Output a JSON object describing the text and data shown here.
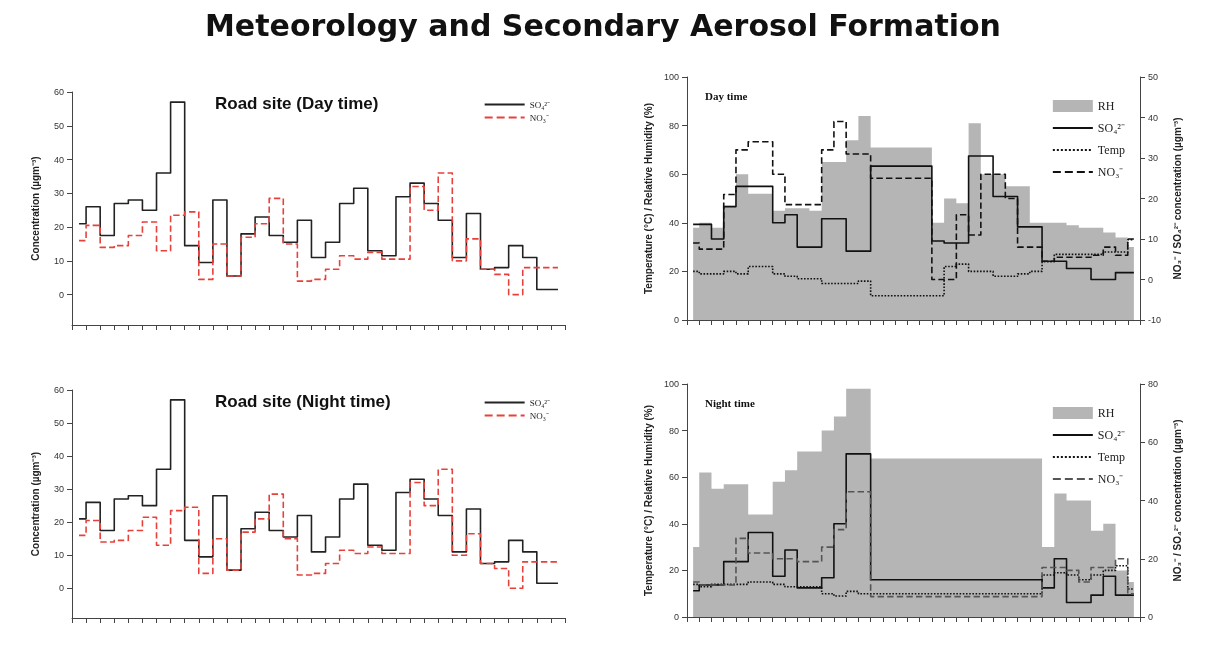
{
  "chart_data": [
    {
      "type": "step",
      "title": "Meteorology and Secondary Aerosol Formation",
      "subtitle": "Road site (Day time)",
      "ylabel": "Concentration (µgm⁻³)",
      "categories": [
        null,
        null,
        null,
        null,
        null,
        null,
        null,
        null,
        null,
        null,
        null,
        null,
        null,
        null,
        null,
        null,
        null,
        null,
        null,
        null,
        null,
        null,
        null,
        null,
        null,
        null,
        null,
        null,
        null,
        null,
        null,
        null,
        null,
        null,
        null
      ],
      "series": [
        {
          "name": "SO₄²⁻",
          "color": "#222222",
          "line_style": "solid",
          "values": [
            21,
            26,
            17.5,
            27,
            28,
            25,
            36,
            57,
            14.5,
            9.5,
            28,
            5.5,
            18,
            23,
            17.5,
            15.5,
            22,
            11,
            15.5,
            27,
            31.5,
            13,
            11.5,
            29,
            33,
            27,
            22,
            11,
            24,
            7.5,
            8,
            14.5,
            11,
            1.5,
            1.5
          ]
        },
        {
          "name": "NO₃⁻",
          "color": "#e8403a",
          "line_style": "dashed",
          "values": [
            16,
            20.5,
            14,
            14.5,
            17.5,
            21.5,
            13,
            23.5,
            24.5,
            4.5,
            15,
            5.5,
            17,
            21,
            28.5,
            15,
            4,
            4.5,
            7.5,
            11.5,
            10.5,
            12.5,
            10.5,
            10.5,
            32,
            25,
            36,
            10,
            16.5,
            7.5,
            6,
            0,
            8,
            8,
            8
          ]
        }
      ],
      "ylim": [
        -9,
        60
      ],
      "yticks": [
        0,
        10,
        20,
        30,
        40,
        50,
        60
      ],
      "grid": false,
      "legend": "top right",
      "marker": "none",
      "tick_labels": "y"
    },
    {
      "type": "step",
      "subtitle": "Road site (Night time)",
      "ylabel": "Concentration (µgm⁻³)",
      "categories": [
        null,
        null,
        null,
        null,
        null,
        null,
        null,
        null,
        null,
        null,
        null,
        null,
        null,
        null,
        null,
        null,
        null,
        null,
        null,
        null,
        null,
        null,
        null,
        null,
        null,
        null,
        null,
        null,
        null,
        null,
        null,
        null,
        null,
        null,
        null
      ],
      "series": [
        {
          "name": "SO₄²⁻",
          "color": "#222222",
          "line_style": "solid",
          "values": [
            21,
            26,
            17.5,
            27,
            28,
            25,
            36,
            57,
            14.5,
            9.5,
            28,
            5.5,
            18,
            23,
            17.5,
            15.5,
            22,
            11,
            15.5,
            27,
            31.5,
            13,
            11.5,
            29,
            33,
            27,
            22,
            11,
            24,
            7.5,
            8,
            14.5,
            11,
            1.5,
            1.5
          ]
        },
        {
          "name": "NO₃⁻",
          "color": "#e8403a",
          "line_style": "dashed",
          "values": [
            16,
            20.5,
            14,
            14.5,
            17.5,
            21.5,
            13,
            23.5,
            24.5,
            4.5,
            15,
            5.5,
            17,
            21,
            28.5,
            15,
            4,
            4.5,
            7.5,
            11.5,
            10.5,
            12.5,
            10.5,
            10.5,
            32,
            25,
            36,
            10,
            16.5,
            7.5,
            6,
            0,
            8,
            8,
            8
          ]
        }
      ],
      "ylim": [
        -9,
        60
      ],
      "yticks": [
        0,
        10,
        20,
        30,
        40,
        50,
        60
      ],
      "grid": false,
      "legend": "top right",
      "marker": "none",
      "tick_labels": "y"
    },
    {
      "type": "step",
      "subtitle": "Day time",
      "ylabel": "Temperature (°C) / Relative Humidity (%)",
      "y2label": "NO₃⁻ / SO₄²⁻ concentration (µgm⁻³)",
      "categories": [
        null,
        null,
        null,
        null,
        null,
        null,
        null,
        null,
        null,
        null,
        null,
        null,
        null,
        null,
        null,
        null,
        null,
        null,
        null,
        null,
        null,
        null,
        null,
        null,
        null,
        null,
        null,
        null,
        null,
        null,
        null,
        null,
        null,
        null,
        null,
        null,
        null
      ],
      "series": [
        {
          "name": "RH",
          "type": "area",
          "color": "#b5b5b5",
          "values": [
            38,
            40,
            38,
            47,
            60,
            52,
            52,
            45,
            46,
            46,
            45,
            65,
            65,
            74,
            84,
            71,
            71,
            71,
            71,
            71,
            40,
            50,
            48,
            81,
            60,
            60,
            55,
            55,
            40,
            40,
            40,
            39,
            38,
            38,
            36,
            34,
            30
          ]
        },
        {
          "name": "SO₄²⁻",
          "color": "#111111",
          "line_style": "solid",
          "axis": "y2",
          "values": [
            13.6,
            13.6,
            10,
            18,
            23,
            23,
            23,
            14,
            16,
            8,
            8,
            15,
            15,
            7,
            7,
            28,
            28,
            28,
            28,
            28,
            9.5,
            9,
            9,
            30.5,
            30.5,
            20.5,
            20.5,
            13,
            13,
            4.5,
            4.5,
            2.7,
            2.7,
            0,
            0,
            1.7,
            1.7
          ]
        },
        {
          "name": "Temp",
          "color": "#111111",
          "line_style": "dotted",
          "values": [
            20,
            19,
            19,
            20,
            19,
            22,
            22,
            19,
            18,
            17,
            17,
            15,
            15,
            15,
            16,
            10,
            10,
            10,
            10,
            10,
            10,
            22,
            23,
            20,
            20,
            18,
            18,
            19,
            20,
            24,
            27,
            27,
            27,
            27,
            28,
            28,
            33
          ]
        },
        {
          "name": "NO₃⁻",
          "color": "#111111",
          "line_style": "dashed",
          "axis": "y2",
          "values": [
            9,
            7.5,
            7.5,
            21,
            32,
            34,
            34,
            26,
            18.5,
            18.5,
            18.5,
            32,
            39,
            31,
            31,
            25,
            25,
            25,
            25,
            25,
            0,
            0,
            16,
            11,
            26,
            26,
            20,
            8,
            8,
            4.5,
            5.5,
            5.5,
            5.5,
            6,
            8,
            6,
            10
          ]
        }
      ],
      "ylim": [
        0,
        100
      ],
      "yticks": [
        0,
        20,
        40,
        60,
        80,
        100
      ],
      "y2lim": [
        -10,
        50
      ],
      "y2ticks": [
        -10,
        0,
        10,
        20,
        30,
        40,
        50
      ],
      "grid": false,
      "legend": "top right",
      "marker": "none",
      "tick_labels": "y"
    },
    {
      "type": "step",
      "subtitle": "Night time",
      "ylabel": "Temperature (°C) / Relative Humidity (%)",
      "y2label": "NO₃⁻ / SO₄²⁻ concentration (µgm⁻³)",
      "categories": [
        null,
        null,
        null,
        null,
        null,
        null,
        null,
        null,
        null,
        null,
        null,
        null,
        null,
        null,
        null,
        null,
        null,
        null,
        null,
        null,
        null,
        null,
        null,
        null,
        null,
        null,
        null,
        null,
        null,
        null,
        null,
        null,
        null,
        null,
        null,
        null,
        null
      ],
      "series": [
        {
          "name": "RH",
          "type": "area",
          "color": "#b5b5b5",
          "values": [
            30,
            62,
            55,
            57,
            57,
            44,
            44,
            58,
            63,
            71,
            71,
            80,
            86,
            98,
            98,
            68,
            68,
            68,
            68,
            68,
            68,
            68,
            68,
            68,
            68,
            68,
            68,
            68,
            68,
            30,
            53,
            50,
            50,
            37,
            40,
            20,
            15
          ]
        },
        {
          "name": "SO₄²⁻",
          "color": "#111111",
          "line_style": "solid",
          "axis": "y2",
          "values": [
            9,
            11,
            11,
            19,
            19,
            29,
            29,
            14,
            23,
            10,
            10,
            13.5,
            32,
            56,
            56,
            12.8,
            12.8,
            12.8,
            12.8,
            12.8,
            12.8,
            12.8,
            12.8,
            12.8,
            12.8,
            12.8,
            12.8,
            12.8,
            12.8,
            10,
            20,
            5,
            5,
            7.5,
            14,
            7.5,
            7.5
          ]
        },
        {
          "name": "Temp",
          "color": "#111111",
          "line_style": "dotted",
          "values": [
            14,
            13,
            14,
            14,
            14,
            15,
            15,
            14,
            13,
            13,
            13,
            10,
            9,
            11,
            10,
            10,
            10,
            10,
            10,
            10,
            10,
            10,
            10,
            10,
            10,
            10,
            10,
            10,
            10,
            18,
            19,
            18,
            16,
            18,
            20,
            22,
            12
          ]
        },
        {
          "name": "NO₃⁻",
          "color": "#555555",
          "line_style": "dashed",
          "axis": "y2",
          "values": [
            12,
            11,
            11,
            11,
            27,
            22,
            22,
            20,
            20,
            19,
            19,
            24,
            30,
            43,
            43,
            7,
            7,
            7,
            7,
            7,
            7,
            7,
            7,
            7,
            7,
            7,
            7,
            7,
            7,
            17,
            17,
            16,
            12,
            17,
            17,
            20,
            8
          ]
        }
      ],
      "ylim": [
        0,
        100
      ],
      "yticks": [
        0,
        20,
        40,
        60,
        80,
        100
      ],
      "y2lim": [
        0,
        80
      ],
      "y2ticks": [
        0,
        20,
        40,
        60,
        80
      ],
      "grid": false,
      "legend": "top right",
      "marker": "none",
      "tick_labels": "y"
    }
  ]
}
